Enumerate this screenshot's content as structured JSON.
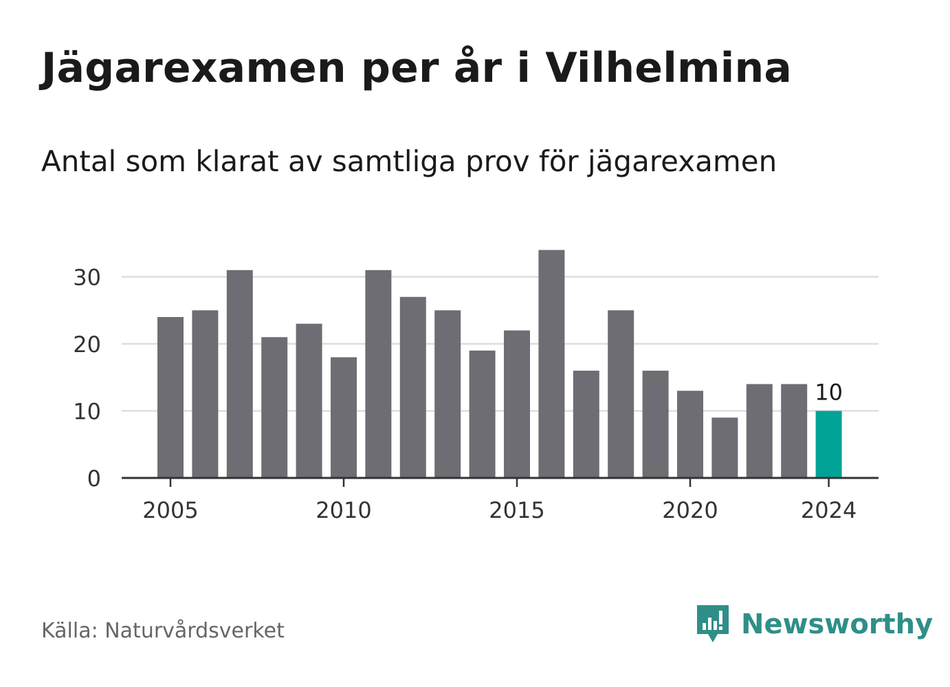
{
  "title": "Jägarexamen per år i Vilhelmina",
  "subtitle": "Antal som klarat av samtliga prov för jägarexamen",
  "source": "Källa: Naturvårdsverket",
  "brand": {
    "name": "Newsworthy",
    "icon": "newsworthy-logo-icon",
    "color": "#2f8f88"
  },
  "colors": {
    "bar": "#6e6d73",
    "highlight": "#00a396",
    "grid": "#dddddd",
    "axis": "#333333"
  },
  "chart_data": {
    "type": "bar",
    "title": "Jägarexamen per år i Vilhelmina",
    "subtitle": "Antal som klarat av samtliga prov för jägarexamen",
    "xlabel": "",
    "ylabel": "",
    "x": [
      2005,
      2006,
      2007,
      2008,
      2009,
      2010,
      2011,
      2012,
      2013,
      2014,
      2015,
      2016,
      2017,
      2018,
      2019,
      2020,
      2021,
      2022,
      2023,
      2024
    ],
    "values": [
      24,
      25,
      31,
      21,
      23,
      18,
      31,
      27,
      25,
      19,
      22,
      34,
      16,
      25,
      16,
      13,
      9,
      14,
      14,
      10
    ],
    "ylim": [
      0,
      35
    ],
    "yticks": [
      0,
      10,
      20,
      30
    ],
    "xticks": [
      2005,
      2010,
      2015,
      2020,
      2024
    ],
    "grid": true,
    "highlight": {
      "x": 2024,
      "label": "10"
    }
  }
}
